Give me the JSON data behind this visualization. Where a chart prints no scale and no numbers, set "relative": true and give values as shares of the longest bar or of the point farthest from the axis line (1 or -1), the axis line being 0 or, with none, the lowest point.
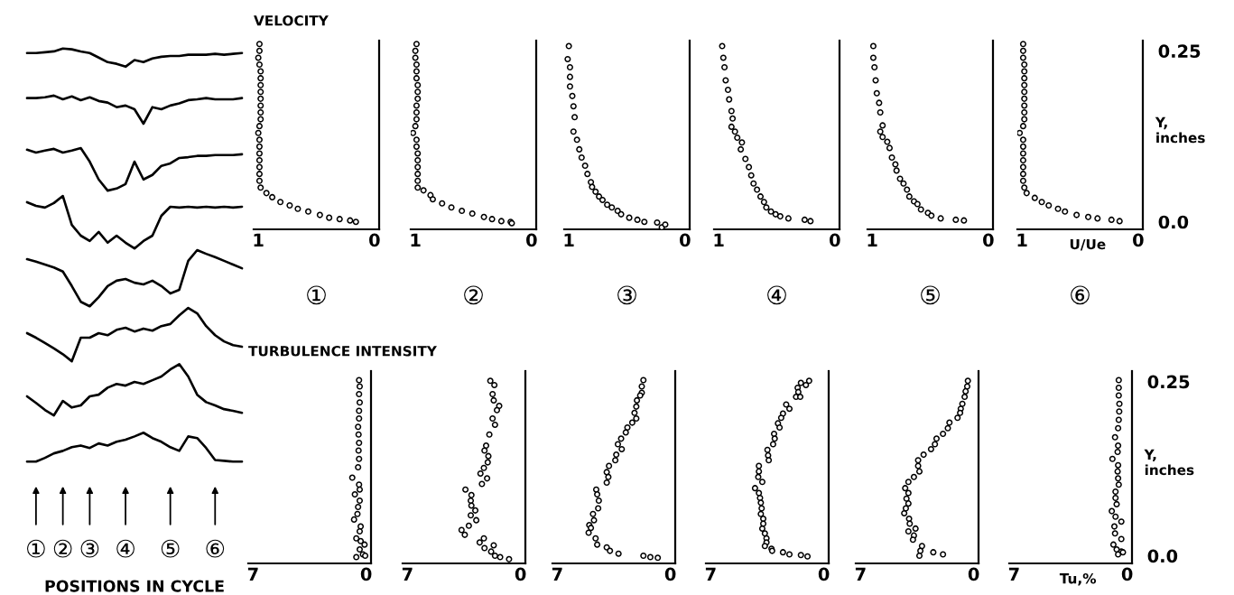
{
  "chart_data": [
    {
      "type": "line",
      "relative": true,
      "xlabel": "POSITIONS IN CYCLE",
      "line_style": "solid",
      "categories": [
        null,
        "①",
        null,
        null,
        "②",
        null,
        null,
        "③",
        null,
        null,
        null,
        "④",
        null,
        null,
        null,
        null,
        "⑤",
        null,
        null,
        null,
        null,
        "⑥",
        null,
        null,
        null
      ],
      "series": [
        {
          "color": "#000000",
          "values": [
            0.989,
            0.989,
            0.991,
            0.993,
            1,
            0.998,
            0.993,
            0.989,
            0.978,
            0.967,
            0.963,
            0.956,
            0.972,
            0.967,
            0.976,
            0.98,
            0.982,
            0.982,
            0.985,
            0.985,
            0.985,
            0.987,
            0.985,
            0.987,
            0.989
          ]
        },
        {
          "color": "#000000",
          "values": [
            0.88,
            0.88,
            0.882,
            0.886,
            0.877,
            0.884,
            0.875,
            0.882,
            0.873,
            0.869,
            0.858,
            0.862,
            0.853,
            0.818,
            0.858,
            0.853,
            0.862,
            0.867,
            0.875,
            0.877,
            0.88,
            0.877,
            0.877,
            0.877,
            0.88
          ]
        },
        {
          "color": "#000000",
          "values": [
            0.755,
            0.748,
            0.753,
            0.757,
            0.748,
            0.753,
            0.759,
            0.726,
            0.683,
            0.656,
            0.661,
            0.672,
            0.726,
            0.683,
            0.694,
            0.716,
            0.722,
            0.735,
            0.737,
            0.74,
            0.74,
            0.742,
            0.742,
            0.742,
            0.744
          ]
        },
        {
          "color": "#000000",
          "values": [
            0.628,
            0.619,
            0.615,
            0.626,
            0.643,
            0.573,
            0.547,
            0.534,
            0.556,
            0.53,
            0.547,
            0.53,
            0.516,
            0.534,
            0.547,
            0.595,
            0.617,
            0.615,
            0.617,
            0.615,
            0.617,
            0.615,
            0.617,
            0.615,
            0.617
          ]
        },
        {
          "color": "#000000",
          "values": [
            0.49,
            0.484,
            0.477,
            0.47,
            0.46,
            0.425,
            0.387,
            0.376,
            0.398,
            0.425,
            0.438,
            0.442,
            0.433,
            0.429,
            0.438,
            0.425,
            0.407,
            0.416,
            0.486,
            0.512,
            0.503,
            0.495,
            0.486,
            0.477,
            0.468
          ]
        },
        {
          "color": "#000000",
          "values": [
            0.311,
            0.3,
            0.287,
            0.274,
            0.26,
            0.243,
            0.3,
            0.3,
            0.311,
            0.306,
            0.319,
            0.324,
            0.315,
            0.322,
            0.317,
            0.328,
            0.333,
            0.354,
            0.372,
            0.359,
            0.328,
            0.306,
            0.291,
            0.282,
            0.278
          ]
        },
        {
          "color": "#000000",
          "values": [
            0.158,
            0.142,
            0.125,
            0.112,
            0.147,
            0.131,
            0.136,
            0.158,
            0.162,
            0.179,
            0.188,
            0.184,
            0.193,
            0.188,
            0.197,
            0.206,
            0.223,
            0.236,
            0.206,
            0.162,
            0.144,
            0.136,
            0.127,
            0.123,
            0.118
          ]
        },
        {
          "color": "#000000",
          "values": [
            0,
            0,
            0.009,
            0.02,
            0.026,
            0.035,
            0.039,
            0.033,
            0.044,
            0.039,
            0.048,
            0.053,
            0.061,
            0.07,
            0.057,
            0.048,
            0.035,
            0.026,
            0.061,
            0.057,
            0.033,
            0.004,
            0.002,
            0,
            0
          ]
        }
      ]
    },
    {
      "type": "scatter",
      "title": "VELOCITY",
      "annotations": [
        "①"
      ],
      "color": "#000000",
      "marker": "circle",
      "xlim": [
        1.04,
        -0.04
      ],
      "xticks": [
        1,
        0
      ],
      "ylim": [
        -0.011,
        0.265
      ],
      "tick_labels": "x",
      "x": [
        0.99,
        0.99,
        1.0,
        0.99,
        0.98,
        0.98,
        0.98,
        0.98,
        0.98,
        0.98,
        0.98,
        0.98,
        0.99,
        1.0,
        0.99,
        0.99,
        0.99,
        0.99,
        0.99,
        0.99,
        0.99,
        0.98,
        0.93,
        0.88,
        0.81,
        0.73,
        0.66,
        0.57,
        0.47,
        0.39,
        0.3,
        0.21,
        0.16
      ],
      "values": [
        0.26,
        0.25,
        0.24,
        0.23,
        0.22,
        0.21,
        0.2,
        0.19,
        0.18,
        0.17,
        0.16,
        0.15,
        0.14,
        0.13,
        0.12,
        0.11,
        0.1,
        0.09,
        0.08,
        0.07,
        0.06,
        0.05,
        0.042,
        0.036,
        0.029,
        0.024,
        0.019,
        0.015,
        0.01,
        0.006,
        0.004,
        0.002,
        0.0
      ]
    },
    {
      "type": "scatter",
      "annotations": [
        "②"
      ],
      "color": "#000000",
      "marker": "circle",
      "xlim": [
        1.04,
        -0.04
      ],
      "xticks": [
        1,
        0
      ],
      "ylim": [
        -0.011,
        0.265
      ],
      "tick_labels": "x",
      "x": [
        0.99,
        1.0,
        1.0,
        0.99,
        0.99,
        0.99,
        0.98,
        0.98,
        0.98,
        0.99,
        0.99,
        0.99,
        1.0,
        1.02,
        0.99,
        0.99,
        0.98,
        0.98,
        0.98,
        0.98,
        0.98,
        0.98,
        0.93,
        0.87,
        0.85,
        0.77,
        0.69,
        0.6,
        0.51,
        0.41,
        0.34,
        0.26,
        0.18,
        0.17
      ],
      "values": [
        0.26,
        0.25,
        0.24,
        0.23,
        0.22,
        0.21,
        0.2,
        0.19,
        0.18,
        0.17,
        0.16,
        0.15,
        0.14,
        0.13,
        0.12,
        0.11,
        0.1,
        0.09,
        0.08,
        0.07,
        0.06,
        0.05,
        0.046,
        0.039,
        0.033,
        0.027,
        0.021,
        0.016,
        0.012,
        0.007,
        0.004,
        0.001,
        0.0,
        -0.002
      ]
    },
    {
      "type": "scatter",
      "annotations": [
        "③"
      ],
      "color": "#000000",
      "marker": "circle",
      "xlim": [
        1.04,
        -0.04
      ],
      "xticks": [
        1,
        0
      ],
      "ylim": [
        -0.011,
        0.265
      ],
      "tick_labels": "x",
      "x": [
        1.0,
        1.01,
        0.99,
        0.99,
        0.99,
        0.97,
        0.96,
        0.95,
        0.96,
        0.93,
        0.91,
        0.89,
        0.86,
        0.84,
        0.81,
        0.8,
        0.77,
        0.74,
        0.71,
        0.67,
        0.63,
        0.58,
        0.55,
        0.48,
        0.41,
        0.35,
        0.24,
        0.2,
        0.17
      ],
      "values": [
        0.257,
        0.238,
        0.226,
        0.212,
        0.198,
        0.184,
        0.169,
        0.153,
        0.132,
        0.12,
        0.106,
        0.094,
        0.082,
        0.07,
        0.058,
        0.051,
        0.044,
        0.037,
        0.032,
        0.025,
        0.021,
        0.016,
        0.011,
        0.006,
        0.003,
        0.0,
        -0.001,
        -0.008,
        -0.004
      ]
    },
    {
      "type": "scatter",
      "annotations": [
        "④"
      ],
      "color": "#000000",
      "marker": "circle",
      "xlim": [
        1.04,
        -0.04
      ],
      "xticks": [
        1,
        0
      ],
      "ylim": [
        -0.011,
        0.265
      ],
      "tick_labels": "x",
      "x": [
        0.97,
        0.96,
        0.95,
        0.94,
        0.92,
        0.91,
        0.89,
        0.88,
        0.89,
        0.86,
        0.84,
        0.8,
        0.81,
        0.77,
        0.74,
        0.72,
        0.7,
        0.67,
        0.64,
        0.61,
        0.59,
        0.55,
        0.51,
        0.47,
        0.4,
        0.26,
        0.21
      ],
      "values": [
        0.257,
        0.24,
        0.226,
        0.207,
        0.193,
        0.179,
        0.162,
        0.151,
        0.139,
        0.132,
        0.123,
        0.116,
        0.106,
        0.092,
        0.08,
        0.068,
        0.056,
        0.047,
        0.037,
        0.029,
        0.021,
        0.015,
        0.011,
        0.008,
        0.005,
        0.003,
        0.001
      ]
    },
    {
      "type": "scatter",
      "annotations": [
        "⑤"
      ],
      "color": "#000000",
      "marker": "circle",
      "xlim": [
        1.04,
        -0.04
      ],
      "xticks": [
        1,
        0
      ],
      "ylim": [
        -0.011,
        0.265
      ],
      "tick_labels": "x",
      "x": [
        0.99,
        0.99,
        0.98,
        0.97,
        0.96,
        0.94,
        0.93,
        0.91,
        0.93,
        0.91,
        0.87,
        0.85,
        0.83,
        0.8,
        0.79,
        0.76,
        0.73,
        0.7,
        0.68,
        0.64,
        0.61,
        0.58,
        0.52,
        0.49,
        0.41,
        0.28,
        0.21
      ],
      "values": [
        0.257,
        0.24,
        0.226,
        0.207,
        0.188,
        0.174,
        0.16,
        0.141,
        0.132,
        0.124,
        0.117,
        0.108,
        0.094,
        0.084,
        0.075,
        0.063,
        0.056,
        0.047,
        0.037,
        0.03,
        0.026,
        0.018,
        0.013,
        0.009,
        0.005,
        0.003,
        0.002
      ]
    },
    {
      "type": "scatter",
      "annotations": [
        "⑥"
      ],
      "xlabel": "U/Ue",
      "ylabel": "Y,\ninches",
      "color": "#000000",
      "marker": "circle",
      "xlim": [
        1.04,
        -0.04
      ],
      "xticks": [
        1,
        0
      ],
      "ylim": [
        -0.011,
        0.265
      ],
      "yticks": [
        {
          "value": 0,
          "label": "0.0"
        },
        0.25
      ],
      "x": [
        0.99,
        0.99,
        0.99,
        0.98,
        0.98,
        0.98,
        0.98,
        0.98,
        0.98,
        0.98,
        0.98,
        0.98,
        0.99,
        1.02,
        0.99,
        0.99,
        0.99,
        0.99,
        0.99,
        0.99,
        0.99,
        0.98,
        0.96,
        0.89,
        0.83,
        0.77,
        0.69,
        0.63,
        0.53,
        0.43,
        0.35,
        0.23,
        0.16
      ],
      "values": [
        0.26,
        0.25,
        0.24,
        0.23,
        0.22,
        0.21,
        0.2,
        0.19,
        0.18,
        0.17,
        0.16,
        0.15,
        0.14,
        0.13,
        0.12,
        0.11,
        0.1,
        0.09,
        0.08,
        0.07,
        0.06,
        0.05,
        0.042,
        0.035,
        0.029,
        0.024,
        0.019,
        0.015,
        0.01,
        0.007,
        0.005,
        0.003,
        0.001
      ]
    },
    {
      "type": "scatter",
      "title": "TURBULENCE INTENSITY",
      "color": "#000000",
      "marker": "circle",
      "xlim": [
        7.3,
        -0.3
      ],
      "xticks": [
        7,
        0
      ],
      "ylim": [
        -0.011,
        0.265
      ],
      "tick_labels": "x",
      "x": [
        0.44,
        0.4,
        0.44,
        0.4,
        0.44,
        0.44,
        0.5,
        0.47,
        0.44,
        0.47,
        0.44,
        0.5,
        0.86,
        0.44,
        0.4,
        0.7,
        0.4,
        0.5,
        0.54,
        0.75,
        0.34,
        0.4,
        0.61,
        0.34,
        0.1,
        0.4,
        0.2,
        0.61,
        0.06
      ],
      "values": [
        0.252,
        0.243,
        0.232,
        0.22,
        0.208,
        0.197,
        0.185,
        0.174,
        0.162,
        0.151,
        0.139,
        0.127,
        0.112,
        0.102,
        0.095,
        0.088,
        0.079,
        0.07,
        0.06,
        0.052,
        0.042,
        0.035,
        0.025,
        0.021,
        0.016,
        0.009,
        0.002,
        -0.002,
        0.0
      ]
    },
    {
      "type": "scatter",
      "color": "#000000",
      "marker": "circle",
      "xlim": [
        7.3,
        -0.3
      ],
      "xticks": [
        7,
        0
      ],
      "ylim": [
        -0.011,
        0.265
      ],
      "tick_labels": "x",
      "x": [
        1.87,
        1.62,
        1.73,
        1.66,
        1.32,
        1.46,
        1.73,
        1.58,
        1.93,
        2.13,
        2.23,
        1.99,
        2.03,
        2.27,
        2.48,
        2.07,
        2.39,
        3.41,
        3.04,
        3.08,
        3.04,
        2.8,
        3.08,
        2.74,
        3.2,
        3.65,
        3.45,
        2.27,
        2.53,
        2.23,
        1.66,
        1.82,
        1.58,
        1.26,
        0.71
      ],
      "values": [
        0.251,
        0.245,
        0.232,
        0.223,
        0.215,
        0.209,
        0.197,
        0.188,
        0.174,
        0.158,
        0.151,
        0.143,
        0.134,
        0.126,
        0.118,
        0.111,
        0.103,
        0.095,
        0.087,
        0.079,
        0.072,
        0.065,
        0.058,
        0.051,
        0.043,
        0.037,
        0.03,
        0.025,
        0.019,
        0.011,
        0.015,
        0.006,
        0.0,
        -0.002,
        -0.005
      ]
    },
    {
      "type": "scatter",
      "color": "#000000",
      "marker": "circle",
      "xlim": [
        7.3,
        -0.3
      ],
      "xticks": [
        7,
        0
      ],
      "ylim": [
        -0.011,
        0.265
      ],
      "tick_labels": "x",
      "x": [
        1.67,
        1.77,
        1.77,
        1.87,
        2.07,
        2.11,
        2.22,
        2.11,
        2.36,
        2.66,
        2.76,
        3.05,
        3.25,
        3.01,
        3.35,
        3.41,
        3.8,
        3.94,
        3.84,
        3.94,
        4.59,
        4.53,
        4.43,
        4.47,
        4.79,
        4.73,
        5.02,
        4.92,
        5.06,
        4.63,
        4.53,
        3.94,
        3.74,
        3.21,
        1.67,
        1.24,
        0.78
      ],
      "values": [
        0.252,
        0.243,
        0.234,
        0.23,
        0.223,
        0.214,
        0.205,
        0.197,
        0.191,
        0.184,
        0.177,
        0.168,
        0.16,
        0.153,
        0.145,
        0.137,
        0.129,
        0.12,
        0.113,
        0.105,
        0.095,
        0.088,
        0.079,
        0.068,
        0.06,
        0.051,
        0.044,
        0.04,
        0.033,
        0.025,
        0.016,
        0.012,
        0.007,
        0.003,
        0.0,
        -0.002,
        -0.003
      ]
    },
    {
      "type": "scatter",
      "color": "#000000",
      "marker": "circle",
      "xlim": [
        7.3,
        -0.3
      ],
      "xticks": [
        7,
        0
      ],
      "ylim": [
        -0.011,
        0.265
      ],
      "tick_labels": "x",
      "x": [
        0.91,
        1.42,
        1.11,
        1.62,
        1.58,
        1.72,
        1.46,
        2.33,
        2.13,
        2.53,
        2.64,
        2.84,
        2.74,
        3.08,
        3.04,
        3.14,
        3.49,
        3.45,
        3.41,
        4.02,
        4.02,
        4.06,
        3.81,
        4.26,
        4.02,
        3.95,
        3.9,
        3.85,
        3.9,
        3.75,
        3.75,
        3.81,
        3.65,
        3.55,
        3.55,
        3.65,
        3.24,
        3.2,
        2.53,
        2.13,
        1.42,
        1.01
      ],
      "values": [
        0.251,
        0.248,
        0.245,
        0.241,
        0.235,
        0.228,
        0.228,
        0.217,
        0.211,
        0.204,
        0.198,
        0.19,
        0.184,
        0.175,
        0.168,
        0.16,
        0.152,
        0.144,
        0.137,
        0.129,
        0.121,
        0.113,
        0.106,
        0.097,
        0.09,
        0.083,
        0.076,
        0.068,
        0.06,
        0.053,
        0.046,
        0.039,
        0.032,
        0.025,
        0.019,
        0.014,
        0.01,
        0.007,
        0.005,
        0.002,
        0.001,
        -0.001
      ]
    },
    {
      "type": "scatter",
      "color": "#000000",
      "marker": "circle",
      "xlim": [
        7.3,
        -0.3
      ],
      "xticks": [
        7,
        0
      ],
      "ylim": [
        -0.011,
        0.265
      ],
      "tick_labels": "x",
      "x": [
        0.36,
        0.4,
        0.5,
        0.56,
        0.7,
        0.8,
        0.84,
        1.0,
        1.5,
        1.6,
        1.9,
        2.3,
        2.4,
        2.64,
        3.1,
        3.44,
        3.44,
        3.36,
        3.7,
        4.04,
        4.24,
        4.04,
        4.16,
        4.04,
        4.2,
        4.3,
        4.0,
        3.96,
        3.6,
        4.04,
        3.7,
        3.76,
        3.2,
        3.3,
        3.36,
        2.5,
        1.9
      ],
      "values": [
        0.251,
        0.243,
        0.236,
        0.228,
        0.218,
        0.211,
        0.205,
        0.198,
        0.191,
        0.183,
        0.175,
        0.168,
        0.16,
        0.153,
        0.145,
        0.137,
        0.129,
        0.121,
        0.113,
        0.106,
        0.097,
        0.09,
        0.082,
        0.075,
        0.068,
        0.061,
        0.053,
        0.046,
        0.039,
        0.035,
        0.029,
        0.023,
        0.014,
        0.007,
        0.0,
        0.005,
        0.002
      ]
    },
    {
      "type": "scatter",
      "xlabel": "Tu,%",
      "ylabel": "Y,\ninches",
      "color": "#000000",
      "marker": "circle",
      "xlim": [
        7.3,
        -0.3
      ],
      "xticks": [
        7,
        0
      ],
      "ylim": [
        -0.011,
        0.265
      ],
      "yticks": [
        {
          "value": 0,
          "label": "0.0"
        },
        0.25
      ],
      "x": [
        0.52,
        0.52,
        0.52,
        0.48,
        0.49,
        0.52,
        0.56,
        0.75,
        0.56,
        0.59,
        0.91,
        0.56,
        0.59,
        0.56,
        0.52,
        0.72,
        0.72,
        0.65,
        0.95,
        0.72,
        0.36,
        0.79,
        0.75,
        0.36,
        0.85,
        0.65,
        0.36,
        0.56,
        0.26
      ],
      "values": [
        0.252,
        0.241,
        0.23,
        0.218,
        0.207,
        0.195,
        0.183,
        0.17,
        0.158,
        0.149,
        0.139,
        0.13,
        0.121,
        0.111,
        0.102,
        0.092,
        0.083,
        0.074,
        0.064,
        0.056,
        0.049,
        0.042,
        0.032,
        0.024,
        0.016,
        0.009,
        0.006,
        0.002,
        0.005
      ]
    }
  ]
}
